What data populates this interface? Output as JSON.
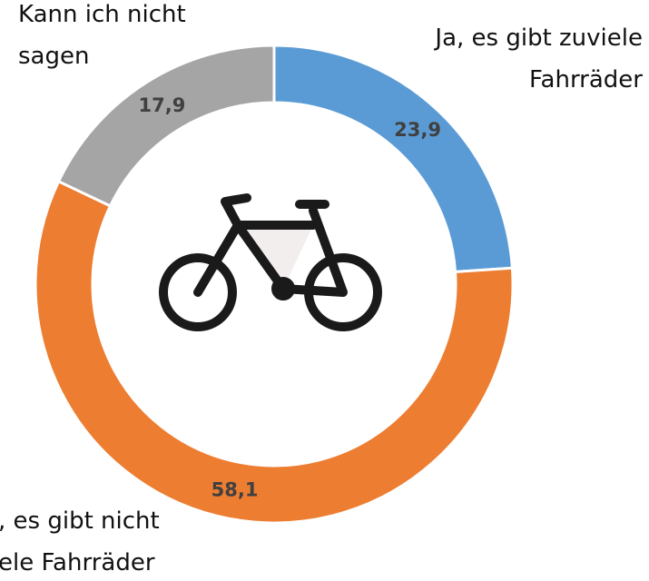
{
  "chart_data": {
    "type": "donut",
    "categories": [
      "Ja, es gibt zuviele\nFahrräder",
      ", es gibt nicht\nele Fahrräder",
      "Kann ich nicht\nsagen"
    ],
    "values": [
      23.9,
      58.1,
      17.9
    ],
    "value_labels": [
      "23,9",
      "58,1",
      "17,9"
    ],
    "colors": [
      "#5b9bd5",
      "#ed7d31",
      "#a5a5a5"
    ]
  }
}
